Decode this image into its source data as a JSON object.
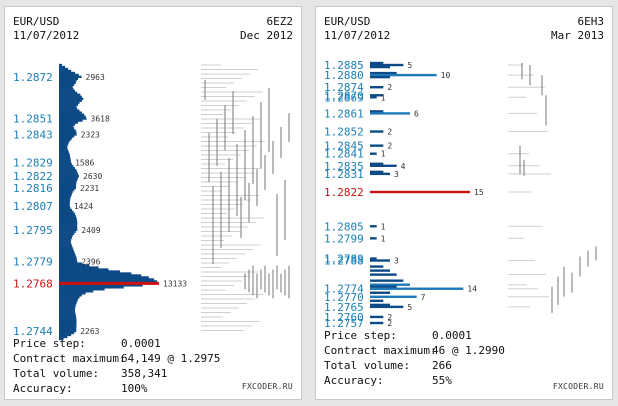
{
  "panels": [
    {
      "pair": "EUR/USD",
      "date": "11/07/2012",
      "contract": "6EZ2",
      "month": "Dec 2012",
      "brand": "FXCODER.RU",
      "stats": [
        {
          "label": "Price step:",
          "value": "0.0001"
        },
        {
          "label": "Contract maximum:",
          "value": "64,149 @ 1.2975"
        },
        {
          "label": "Total volume:",
          "value": "358,341"
        },
        {
          "label": "Accuracy:",
          "value": "100%"
        }
      ]
    },
    {
      "pair": "EUR/USD",
      "date": "11/07/2012",
      "contract": "6EH3",
      "month": "Mar 2013",
      "brand": "FXCODER.RU",
      "stats": [
        {
          "label": "Price step:",
          "value": "0.0001"
        },
        {
          "label": "Contract maximum:",
          "value": "46 @ 1.2990"
        },
        {
          "label": "Total volume:",
          "value": "266"
        },
        {
          "label": "Accuracy:",
          "value": "55%"
        }
      ]
    }
  ],
  "colors": {
    "bar": "#0d4a86",
    "bar_light": "#1e7ab8",
    "price_text": "#1a7fb5",
    "highlight": "#cc1111",
    "gray": "#777777"
  },
  "chart_data": [
    {
      "type": "bar",
      "orientation": "horizontal",
      "mode": "dense-profile",
      "ylim": [
        1.274,
        1.2878
      ],
      "xmax": 13133,
      "highlight_price": 1.2768,
      "price_labels": [
        "1.2872",
        "1.2851",
        "1.2843",
        "1.2829",
        "1.2822",
        "1.2816",
        "1.2807",
        "1.2795",
        "1.2779",
        "1.2768",
        "1.2744"
      ],
      "volume_labels": [
        {
          "y": 1.2872,
          "v": "2963"
        },
        {
          "y": 1.2851,
          "v": "3618"
        },
        {
          "y": 1.2843,
          "v": "2323"
        },
        {
          "y": 1.2829,
          "v": "1586"
        },
        {
          "y": 1.2822,
          "v": "2630"
        },
        {
          "y": 1.2816,
          "v": "2231"
        },
        {
          "y": 1.2807,
          "v": "1424"
        },
        {
          "y": 1.2795,
          "v": "2409"
        },
        {
          "y": 1.2779,
          "v": "2396"
        },
        {
          "y": 1.2768,
          "v": "13133"
        },
        {
          "y": 1.2744,
          "v": "2263"
        }
      ],
      "profile": [
        [
          1.2878,
          400
        ],
        [
          1.2877,
          800
        ],
        [
          1.2876,
          1200
        ],
        [
          1.2875,
          1600
        ],
        [
          1.2874,
          2100
        ],
        [
          1.2873,
          2600
        ],
        [
          1.2872,
          2963
        ],
        [
          1.2871,
          2500
        ],
        [
          1.287,
          2300
        ],
        [
          1.2869,
          2200
        ],
        [
          1.2868,
          2000
        ],
        [
          1.2867,
          1800
        ],
        [
          1.2866,
          1900
        ],
        [
          1.2865,
          2100
        ],
        [
          1.2864,
          2400
        ],
        [
          1.2863,
          2800
        ],
        [
          1.2862,
          3000
        ],
        [
          1.2861,
          3200
        ],
        [
          1.286,
          3000
        ],
        [
          1.2859,
          2700
        ],
        [
          1.2858,
          2500
        ],
        [
          1.2857,
          2300
        ],
        [
          1.2856,
          2400
        ],
        [
          1.2855,
          2700
        ],
        [
          1.2854,
          3000
        ],
        [
          1.2853,
          3300
        ],
        [
          1.2852,
          3500
        ],
        [
          1.2851,
          3618
        ],
        [
          1.285,
          3100
        ],
        [
          1.2849,
          2500
        ],
        [
          1.2848,
          2100
        ],
        [
          1.2847,
          1900
        ],
        [
          1.2846,
          2000
        ],
        [
          1.2845,
          2200
        ],
        [
          1.2844,
          2300
        ],
        [
          1.2843,
          2323
        ],
        [
          1.2842,
          2000
        ],
        [
          1.2841,
          1700
        ],
        [
          1.284,
          1500
        ],
        [
          1.2839,
          1300
        ],
        [
          1.2838,
          1200
        ],
        [
          1.2837,
          1100
        ],
        [
          1.2836,
          1100
        ],
        [
          1.2835,
          1200
        ],
        [
          1.2834,
          1300
        ],
        [
          1.2833,
          1400
        ],
        [
          1.2832,
          1450
        ],
        [
          1.2831,
          1500
        ],
        [
          1.283,
          1550
        ],
        [
          1.2829,
          1586
        ],
        [
          1.2828,
          1700
        ],
        [
          1.2827,
          1900
        ],
        [
          1.2826,
          2100
        ],
        [
          1.2825,
          2300
        ],
        [
          1.2824,
          2400
        ],
        [
          1.2823,
          2500
        ],
        [
          1.2822,
          2630
        ],
        [
          1.2821,
          2500
        ],
        [
          1.282,
          2400
        ],
        [
          1.2819,
          2300
        ],
        [
          1.2818,
          2250
        ],
        [
          1.2817,
          2240
        ],
        [
          1.2816,
          2231
        ],
        [
          1.2815,
          2000
        ],
        [
          1.2814,
          1800
        ],
        [
          1.2813,
          1700
        ],
        [
          1.2812,
          1600
        ],
        [
          1.2811,
          1500
        ],
        [
          1.281,
          1450
        ],
        [
          1.2809,
          1430
        ],
        [
          1.2808,
          1420
        ],
        [
          1.2807,
          1424
        ],
        [
          1.2806,
          1500
        ],
        [
          1.2805,
          1700
        ],
        [
          1.2804,
          1900
        ],
        [
          1.2803,
          2100
        ],
        [
          1.2802,
          2200
        ],
        [
          1.2801,
          2300
        ],
        [
          1.28,
          2350
        ],
        [
          1.2799,
          2400
        ],
        [
          1.2798,
          2400
        ],
        [
          1.2797,
          2380
        ],
        [
          1.2796,
          2400
        ],
        [
          1.2795,
          2409
        ],
        [
          1.2794,
          2200
        ],
        [
          1.2793,
          2000
        ],
        [
          1.2792,
          1800
        ],
        [
          1.2791,
          1700
        ],
        [
          1.279,
          1600
        ],
        [
          1.2789,
          1550
        ],
        [
          1.2788,
          1600
        ],
        [
          1.2787,
          1700
        ],
        [
          1.2786,
          1800
        ],
        [
          1.2785,
          1900
        ],
        [
          1.2784,
          2000
        ],
        [
          1.2783,
          2100
        ],
        [
          1.2782,
          2200
        ],
        [
          1.2781,
          2300
        ],
        [
          1.278,
          2350
        ],
        [
          1.2779,
          2396
        ],
        [
          1.2778,
          3000
        ],
        [
          1.2777,
          4000
        ],
        [
          1.2776,
          5200
        ],
        [
          1.2775,
          6500
        ],
        [
          1.2774,
          8000
        ],
        [
          1.2773,
          9500
        ],
        [
          1.2772,
          10800
        ],
        [
          1.2771,
          11800
        ],
        [
          1.277,
          12500
        ],
        [
          1.2769,
          12900
        ],
        [
          1.2768,
          13133
        ],
        [
          1.2767,
          11000
        ],
        [
          1.2766,
          8500
        ],
        [
          1.2765,
          6000
        ],
        [
          1.2764,
          4500
        ],
        [
          1.2763,
          3500
        ],
        [
          1.2762,
          3000
        ],
        [
          1.2761,
          2700
        ],
        [
          1.276,
          2500
        ],
        [
          1.2759,
          2400
        ],
        [
          1.2758,
          2300
        ],
        [
          1.2757,
          2200
        ],
        [
          1.2756,
          2150
        ],
        [
          1.2755,
          2100
        ],
        [
          1.2754,
          2100
        ],
        [
          1.2753,
          2150
        ],
        [
          1.2752,
          2200
        ],
        [
          1.2751,
          2250
        ],
        [
          1.275,
          2280
        ],
        [
          1.2749,
          2300
        ],
        [
          1.2748,
          2300
        ],
        [
          1.2747,
          2290
        ],
        [
          1.2746,
          2280
        ],
        [
          1.2745,
          2270
        ],
        [
          1.2744,
          2263
        ],
        [
          1.2743,
          2000
        ],
        [
          1.2742,
          1600
        ],
        [
          1.2741,
          1100
        ],
        [
          1.274,
          600
        ]
      ]
    },
    {
      "type": "bar",
      "orientation": "horizontal",
      "mode": "sparse-profile",
      "ylim": [
        1.2757,
        1.2887
      ],
      "xmax": 15,
      "highlight_price": 1.2822,
      "price_labels": [
        "1.2885",
        "1.2880",
        "1.2874",
        "1.2870",
        "1.2869",
        "1.2861",
        "1.2852",
        "1.2845",
        "1.2841",
        "1.2835",
        "1.2831",
        "1.2822",
        "1.2805",
        "1.2799",
        "1.2789",
        "1.2788",
        "1.2774",
        "1.2770",
        "1.2765",
        "1.2760",
        "1.2757"
      ],
      "bars": [
        {
          "y": 1.2886,
          "v": 2
        },
        {
          "y": 1.2885,
          "v": 5
        },
        {
          "y": 1.2884,
          "v": 3
        },
        {
          "y": 1.2881,
          "v": 4
        },
        {
          "y": 1.288,
          "v": 10
        },
        {
          "y": 1.2879,
          "v": 3
        },
        {
          "y": 1.2874,
          "v": 2
        },
        {
          "y": 1.287,
          "v": 2
        },
        {
          "y": 1.2869,
          "v": 1
        },
        {
          "y": 1.2862,
          "v": 2
        },
        {
          "y": 1.2861,
          "v": 6
        },
        {
          "y": 1.2852,
          "v": 2
        },
        {
          "y": 1.2845,
          "v": 2
        },
        {
          "y": 1.2841,
          "v": 1
        },
        {
          "y": 1.2836,
          "v": 2
        },
        {
          "y": 1.2835,
          "v": 4
        },
        {
          "y": 1.2832,
          "v": 2
        },
        {
          "y": 1.2831,
          "v": 3
        },
        {
          "y": 1.2822,
          "v": 15
        },
        {
          "y": 1.2805,
          "v": 1
        },
        {
          "y": 1.2799,
          "v": 1
        },
        {
          "y": 1.2789,
          "v": 1
        },
        {
          "y": 1.2788,
          "v": 3
        },
        {
          "y": 1.2785,
          "v": 2
        },
        {
          "y": 1.2783,
          "v": 3
        },
        {
          "y": 1.2781,
          "v": 4
        },
        {
          "y": 1.2778,
          "v": 5
        },
        {
          "y": 1.2776,
          "v": 6
        },
        {
          "y": 1.2775,
          "v": 4
        },
        {
          "y": 1.2774,
          "v": 14
        },
        {
          "y": 1.2772,
          "v": 3
        },
        {
          "y": 1.277,
          "v": 7
        },
        {
          "y": 1.2768,
          "v": 2
        },
        {
          "y": 1.2766,
          "v": 3
        },
        {
          "y": 1.2765,
          "v": 5
        },
        {
          "y": 1.276,
          "v": 2
        },
        {
          "y": 1.2757,
          "v": 2
        }
      ],
      "volume_labels": [
        {
          "y": 1.2885,
          "v": "5"
        },
        {
          "y": 1.288,
          "v": "10"
        },
        {
          "y": 1.2874,
          "v": "2"
        },
        {
          "y": 1.2869,
          "v": "1"
        },
        {
          "y": 1.2861,
          "v": "6"
        },
        {
          "y": 1.2852,
          "v": "2"
        },
        {
          "y": 1.2845,
          "v": "2"
        },
        {
          "y": 1.2841,
          "v": "1"
        },
        {
          "y": 1.2835,
          "v": "4"
        },
        {
          "y": 1.2831,
          "v": "3"
        },
        {
          "y": 1.2822,
          "v": "15"
        },
        {
          "y": 1.2805,
          "v": "1"
        },
        {
          "y": 1.2799,
          "v": "1"
        },
        {
          "y": 1.2788,
          "v": "3"
        },
        {
          "y": 1.2774,
          "v": "14"
        },
        {
          "y": 1.277,
          "v": "7"
        },
        {
          "y": 1.2765,
          "v": "5"
        },
        {
          "y": 1.276,
          "v": "2"
        },
        {
          "y": 1.2757,
          "v": "2"
        }
      ]
    }
  ]
}
